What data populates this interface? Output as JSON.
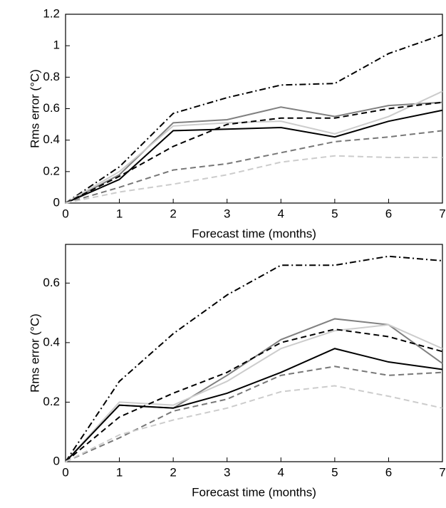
{
  "chart_data": [
    {
      "type": "line",
      "x_label": "Forecast time (months)",
      "y_label": "Rms error (°C)",
      "x": [
        0,
        1,
        2,
        3,
        4,
        5,
        6,
        7
      ],
      "xlim": [
        0,
        7
      ],
      "xticks": [
        0,
        1,
        2,
        3,
        4,
        5,
        6,
        7
      ],
      "ylim": [
        0,
        1.2
      ],
      "yticks": [
        0,
        0.2,
        0.4,
        0.6,
        0.8,
        1,
        1.2
      ],
      "series": [
        {
          "color": "#000000",
          "dash": "dashdot",
          "values": [
            0,
            0.23,
            0.57,
            0.67,
            0.75,
            0.76,
            0.95,
            1.07
          ]
        },
        {
          "color": "#808080",
          "dash": "solid",
          "values": [
            0,
            0.18,
            0.51,
            0.53,
            0.61,
            0.55,
            0.62,
            0.64
          ]
        },
        {
          "color": "#cccccc",
          "dash": "solid",
          "values": [
            0,
            0.2,
            0.49,
            0.51,
            0.52,
            0.44,
            0.55,
            0.71
          ]
        },
        {
          "color": "#000000",
          "dash": "dash",
          "values": [
            0,
            0.17,
            0.36,
            0.5,
            0.54,
            0.54,
            0.6,
            0.64
          ]
        },
        {
          "color": "#000000",
          "dash": "solid",
          "values": [
            0,
            0.15,
            0.46,
            0.47,
            0.48,
            0.42,
            0.52,
            0.59
          ]
        },
        {
          "color": "#777777",
          "dash": "dash",
          "values": [
            0,
            0.1,
            0.21,
            0.25,
            0.32,
            0.39,
            0.42,
            0.46
          ]
        },
        {
          "color": "#cccccc",
          "dash": "dash",
          "values": [
            0,
            0.07,
            0.12,
            0.18,
            0.26,
            0.3,
            0.29,
            0.29
          ]
        }
      ]
    },
    {
      "type": "line",
      "x_label": "Forecast time (months)",
      "y_label": "Rms error (°C)",
      "x": [
        0,
        1,
        2,
        3,
        4,
        5,
        6,
        7
      ],
      "xlim": [
        0,
        7
      ],
      "xticks": [
        0,
        1,
        2,
        3,
        4,
        5,
        6,
        7
      ],
      "ylim": [
        0,
        0.73
      ],
      "yticks": [
        0,
        0.2,
        0.4,
        0.6
      ],
      "series": [
        {
          "color": "#000000",
          "dash": "dashdot",
          "values": [
            0,
            0.27,
            0.43,
            0.56,
            0.66,
            0.66,
            0.69,
            0.675
          ]
        },
        {
          "color": "#808080",
          "dash": "solid",
          "values": [
            0,
            0.19,
            0.18,
            0.29,
            0.41,
            0.48,
            0.46,
            0.33
          ]
        },
        {
          "color": "#cccccc",
          "dash": "solid",
          "values": [
            0,
            0.2,
            0.19,
            0.27,
            0.38,
            0.44,
            0.46,
            0.38
          ]
        },
        {
          "color": "#000000",
          "dash": "dash",
          "values": [
            0,
            0.15,
            0.23,
            0.3,
            0.4,
            0.445,
            0.42,
            0.37
          ]
        },
        {
          "color": "#000000",
          "dash": "solid",
          "values": [
            0,
            0.19,
            0.18,
            0.23,
            0.3,
            0.38,
            0.335,
            0.31
          ]
        },
        {
          "color": "#777777",
          "dash": "dash",
          "values": [
            0,
            0.08,
            0.17,
            0.21,
            0.29,
            0.32,
            0.29,
            0.3
          ]
        },
        {
          "color": "#cccccc",
          "dash": "dash",
          "values": [
            0,
            0.09,
            0.14,
            0.18,
            0.235,
            0.255,
            0.22,
            0.18
          ]
        }
      ]
    }
  ]
}
